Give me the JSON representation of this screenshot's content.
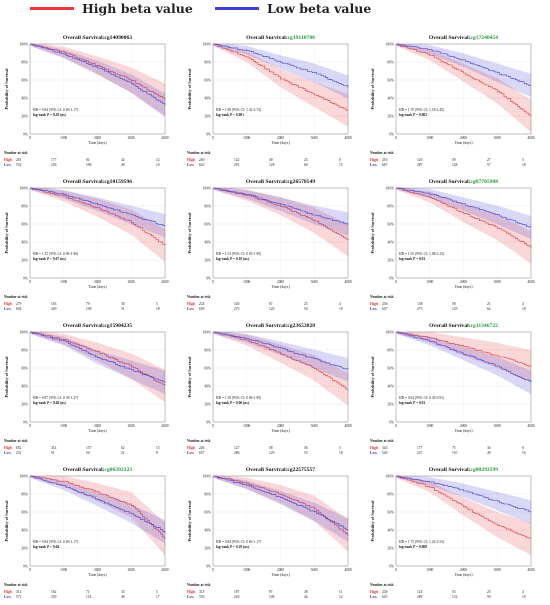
{
  "legend": {
    "high_label": "High beta value",
    "low_label": "Low beta value",
    "high_color": "#e8383b",
    "low_color": "#3f3fd6"
  },
  "common": {
    "title_prefix": "Overall Survival:",
    "ylabel": "Probability of Survival",
    "xlabel": "Time (days)",
    "risk_title": "Number at risk",
    "risk_high": "High",
    "risk_low": "Low",
    "yticks": [
      "0%",
      "20%",
      "40%",
      "60%",
      "80%",
      "100%"
    ],
    "xticks": [
      "0",
      "1000",
      "2000",
      "3000",
      "4000"
    ]
  },
  "chart_data": [
    {
      "type": "line",
      "cpg": "cg14090063",
      "cpg_color": "#111111",
      "hr": "HR = 0.84 (95% CI: 0.60-1.17)",
      "logrank": "log-rank P = 0.29 (ns)",
      "x": [
        0,
        1000,
        2000,
        3000,
        4000
      ],
      "ylim": [
        0,
        100
      ],
      "xlim": [
        0,
        4000
      ],
      "series": [
        {
          "name": "High",
          "values": [
            100,
            91,
            76,
            60,
            38
          ]
        },
        {
          "name": "Low",
          "values": [
            100,
            89,
            74,
            56,
            32
          ]
        }
      ],
      "risk": {
        "high": [
          "201",
          "177",
          "81",
          "42",
          "12"
        ],
        "low": [
          "532",
          "256",
          "106",
          "40",
          "10"
        ]
      }
    },
    {
      "type": "line",
      "cpg": "cg19110788",
      "cpg_color": "#1f9a3a",
      "hr": "HR = 1.90 (95% CI: 1.32-2.74)",
      "logrank": "log-rank P < 0.001",
      "x": [
        0,
        1000,
        2000,
        3000,
        4000
      ],
      "ylim": [
        0,
        100
      ],
      "xlim": [
        0,
        4000
      ],
      "series": [
        {
          "name": "High",
          "values": [
            100,
            86,
            62,
            44,
            26
          ]
        },
        {
          "name": "Low",
          "values": [
            100,
            93,
            80,
            68,
            52
          ]
        }
      ],
      "risk": {
        "high": [
          "240",
          "122",
          "49",
          "23",
          "8"
        ],
        "low": [
          "643",
          "291",
          "128",
          "60",
          "15"
        ]
      }
    },
    {
      "type": "line",
      "cpg": "cg17240454",
      "cpg_color": "#1f9a3a",
      "hr": "HR = 1.70 (95% CI: 1.18-2.45)",
      "logrank": "log-rank P = 0.002",
      "x": [
        0,
        1000,
        2000,
        3000,
        4000
      ],
      "ylim": [
        0,
        100
      ],
      "xlim": [
        0,
        4000
      ],
      "series": [
        {
          "name": "High",
          "values": [
            100,
            88,
            68,
            48,
            20
          ]
        },
        {
          "name": "Low",
          "values": [
            100,
            94,
            82,
            68,
            54
          ]
        }
      ],
      "risk": {
        "high": [
          "216",
          "126",
          "59",
          "27",
          "5"
        ],
        "low": [
          "667",
          "287",
          "128",
          "57",
          "18"
        ]
      }
    },
    {
      "type": "line",
      "cpg": "cg10159596",
      "cpg_color": "#111111",
      "hr": "HR = 1.35 (95% CI: 0.96-1.90)",
      "logrank": "log-rank P = 0.07 (ns)",
      "x": [
        0,
        1000,
        2000,
        3000,
        4000
      ],
      "ylim": [
        0,
        100
      ],
      "xlim": [
        0,
        4000
      ],
      "series": [
        {
          "name": "High",
          "values": [
            100,
            91,
            78,
            62,
            36
          ]
        },
        {
          "name": "Low",
          "values": [
            100,
            93,
            82,
            70,
            58
          ]
        }
      ],
      "risk": {
        "high": [
          "279",
          "163",
          "79",
          "30",
          "5"
        ],
        "low": [
          "604",
          "249",
          "108",
          "51",
          "18"
        ]
      }
    },
    {
      "type": "line",
      "cpg": "cg26578549",
      "cpg_color": "#111111",
      "hr": "HR = 1.33 (95% CI: 0.93-1.90)",
      "logrank": "log-rank P = 0.10 (ns)",
      "x": [
        0,
        1000,
        2000,
        3000,
        4000
      ],
      "ylim": [
        0,
        100
      ],
      "xlim": [
        0,
        4000
      ],
      "series": [
        {
          "name": "High",
          "values": [
            100,
            92,
            80,
            64,
            42
          ]
        },
        {
          "name": "Low",
          "values": [
            100,
            93,
            82,
            70,
            60
          ]
        }
      ],
      "risk": {
        "high": [
          "224",
          "140",
          "67",
          "25",
          "4"
        ],
        "low": [
          "659",
          "273",
          "120",
          "50",
          "19"
        ]
      }
    },
    {
      "type": "line",
      "cpg": "cg07705908",
      "cpg_color": "#1f9a3a",
      "hr": "HR = 1.55 (95% CI: 1.08-2.23)",
      "logrank": "log-rank P = 0.01",
      "x": [
        0,
        1000,
        2000,
        3000,
        4000
      ],
      "ylim": [
        0,
        100
      ],
      "xlim": [
        0,
        4000
      ],
      "series": [
        {
          "name": "High",
          "values": [
            100,
            90,
            72,
            56,
            34
          ]
        },
        {
          "name": "Low",
          "values": [
            100,
            94,
            82,
            70,
            56
          ]
        }
      ],
      "risk": {
        "high": [
          "236",
          "138",
          "58",
          "21",
          "4"
        ],
        "low": [
          "647",
          "275",
          "129",
          "62",
          "18"
        ]
      }
    },
    {
      "type": "line",
      "cpg": "cg15904235",
      "cpg_color": "#111111",
      "hr": "HR = 0.87 (95% CI: 0.59-1.27)",
      "logrank": "log-rank P = 0.48 (ns)",
      "x": [
        0,
        1000,
        2000,
        3000,
        4000
      ],
      "ylim": [
        0,
        100
      ],
      "xlim": [
        0,
        4000
      ],
      "series": [
        {
          "name": "High",
          "values": [
            100,
            92,
            78,
            62,
            40
          ]
        },
        {
          "name": "Low",
          "values": [
            100,
            90,
            72,
            58,
            44
          ]
        }
      ],
      "risk": {
        "high": [
          "652",
          "314",
          "137",
          "62",
          "15"
        ],
        "low": [
          "231",
          "91",
          "50",
          "21",
          "8"
        ]
      }
    },
    {
      "type": "line",
      "cpg": "cg23653828",
      "cpg_color": "#111111",
      "hr": "HR = 1.39 (95% CI: 0.96-1.99)",
      "logrank": "log-rank P = 0.06 (ns)",
      "x": [
        0,
        1000,
        2000,
        3000,
        4000
      ],
      "ylim": [
        0,
        100
      ],
      "xlim": [
        0,
        4000
      ],
      "series": [
        {
          "name": "High",
          "values": [
            100,
            91,
            76,
            60,
            36
          ]
        },
        {
          "name": "Low",
          "values": [
            100,
            93,
            82,
            70,
            58
          ]
        }
      ],
      "risk": {
        "high": [
          "226",
          "127",
          "58",
          "56",
          "5"
        ],
        "low": [
          "657",
          "286",
          "129",
          "55",
          "18"
        ]
      }
    },
    {
      "type": "line",
      "cpg": "cg11346722",
      "cpg_color": "#1f9a3a",
      "hr": "HR = 0.64 (95% CI: 0.45-0.91)",
      "logrank": "log-rank P = 0.01",
      "x": [
        0,
        1000,
        2000,
        3000,
        4000
      ],
      "ylim": [
        0,
        100
      ],
      "xlim": [
        0,
        4000
      ],
      "series": [
        {
          "name": "High",
          "values": [
            100,
            94,
            84,
            74,
            62
          ]
        },
        {
          "name": "Low",
          "values": [
            100,
            90,
            76,
            62,
            44
          ]
        }
      ],
      "risk": {
        "high": [
          "343",
          "177",
          "75",
          "34",
          "6"
        ],
        "low": [
          "540",
          "237",
          "110",
          "49",
          "16"
        ]
      }
    },
    {
      "type": "line",
      "cpg": "cg06392123",
      "cpg_color": "#1f9a3a",
      "hr": "HR = 0.84 (95% CI: 0.60-1.17)",
      "logrank": "log-rank P = 0.04",
      "x": [
        0,
        1000,
        2000,
        3000,
        4000
      ],
      "ylim": [
        0,
        100
      ],
      "xlim": [
        0,
        4000
      ],
      "series": [
        {
          "name": "High",
          "values": [
            100,
            94,
            82,
            68,
            30
          ]
        },
        {
          "name": "Low",
          "values": [
            100,
            89,
            74,
            58,
            38
          ]
        }
      ],
      "risk": {
        "high": [
          "312",
          "162",
          "71",
          "33",
          "5"
        ],
        "low": [
          "571",
          "250",
          "114",
          "49",
          "17"
        ]
      }
    },
    {
      "type": "line",
      "cpg": "cg22575557",
      "cpg_color": "#111111",
      "hr": "HR = 0.84 (95% CI: 0.60-1.17)",
      "logrank": "log-rank P = 0.29 (ns)",
      "x": [
        0,
        1000,
        2000,
        3000,
        4000
      ],
      "ylim": [
        0,
        100
      ],
      "xlim": [
        0,
        4000
      ],
      "series": [
        {
          "name": "High",
          "values": [
            100,
            92,
            80,
            64,
            34
          ]
        },
        {
          "name": "Low",
          "values": [
            100,
            90,
            76,
            60,
            40
          ]
        }
      ],
      "risk": {
        "high": [
          "315",
          "187",
          "87",
          "38",
          "11"
        ],
        "low": [
          "550",
          "226",
          "108",
          "44",
          "12"
        ]
      }
    },
    {
      "type": "line",
      "cpg": "cg00293599",
      "cpg_color": "#1f9a3a",
      "hr": "HR = 1.75 (95% CI: 1.22-2.53)",
      "logrank": "log-rank P = 0.008",
      "x": [
        0,
        1000,
        2000,
        3000,
        4000
      ],
      "ylim": [
        0,
        100
      ],
      "xlim": [
        0,
        4000
      ],
      "series": [
        {
          "name": "High",
          "values": [
            100,
            88,
            66,
            46,
            30
          ]
        },
        {
          "name": "Low",
          "values": [
            100,
            94,
            84,
            72,
            60
          ]
        }
      ],
      "risk": {
        "high": [
          "238",
          "124",
          "55",
          "25",
          "4"
        ],
        "low": [
          "645",
          "289",
          "132",
          "59",
          "19"
        ]
      }
    }
  ]
}
